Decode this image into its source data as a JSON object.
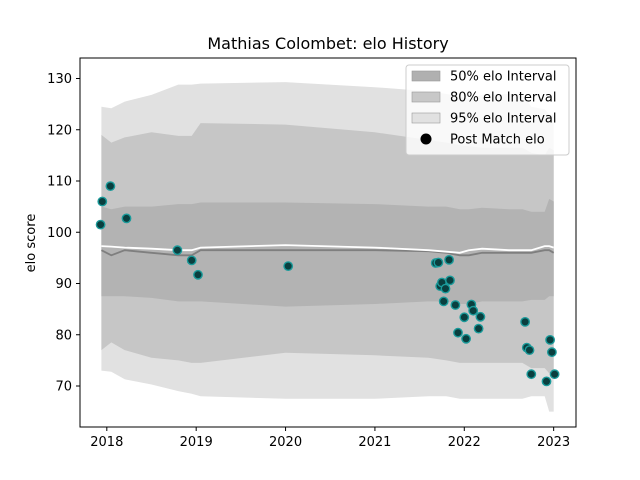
{
  "chart_data": {
    "type": "scatter",
    "title": "Mathias Colombet: elo History",
    "xlabel": "",
    "ylabel": "elo score",
    "xlim": [
      2017.7,
      2023.25
    ],
    "ylim": [
      62,
      134
    ],
    "x_ticks": [
      2018,
      2019,
      2020,
      2021,
      2022,
      2023
    ],
    "y_ticks": [
      70,
      80,
      90,
      100,
      110,
      120,
      130
    ],
    "grid": false,
    "legend_position": "top-right",
    "legend": [
      {
        "label": "50% elo Interval",
        "kind": "band",
        "color": "#b0b0b0"
      },
      {
        "label": "80% elo Interval",
        "kind": "band",
        "color": "#c8c8c8"
      },
      {
        "label": "95% elo Interval",
        "kind": "band",
        "color": "#e1e1e1"
      },
      {
        "label": "Post Match elo",
        "kind": "marker",
        "color": "#000000"
      }
    ],
    "colors": {
      "band95": "#e1e1e1",
      "band80": "#c6c6c6",
      "band50": "#b3b3b3",
      "median_line": "#7f7f7f",
      "mean_line": "#ffffff",
      "marker_fill": "#0a3f3f",
      "marker_edge": "#1a9a9a"
    },
    "bands": {
      "x": [
        2017.94,
        2018.05,
        2018.2,
        2018.5,
        2018.8,
        2018.95,
        2019.05,
        2020.0,
        2021.0,
        2021.6,
        2021.8,
        2021.95,
        2022.05,
        2022.2,
        2022.5,
        2022.65,
        2022.75,
        2022.9,
        2022.95,
        2023.0
      ],
      "upper95": [
        124.5,
        124.2,
        125.5,
        126.8,
        128.8,
        128.8,
        129.0,
        129.3,
        128.3,
        127.5,
        127.0,
        126.5,
        126.0,
        126.8,
        127.0,
        127.0,
        124.5,
        124.0,
        123.0,
        123.0
      ],
      "upper80": [
        119.0,
        117.5,
        118.5,
        119.5,
        118.8,
        118.8,
        121.3,
        121.0,
        119.5,
        118.0,
        117.5,
        117.0,
        116.8,
        116.5,
        116.5,
        116.5,
        115.5,
        115.0,
        116.5,
        116.0
      ],
      "upper50": [
        105.0,
        104.5,
        105.0,
        105.0,
        105.5,
        105.5,
        105.8,
        105.8,
        105.5,
        105.0,
        105.0,
        104.5,
        104.5,
        104.8,
        104.5,
        104.5,
        104.0,
        104.0,
        106.5,
        106.0
      ],
      "median": [
        96.5,
        95.5,
        96.5,
        96.0,
        95.5,
        95.5,
        96.5,
        96.5,
        96.5,
        96.3,
        96.0,
        95.5,
        95.5,
        96.0,
        96.0,
        96.0,
        96.0,
        96.5,
        96.5,
        96.0
      ],
      "mean": [
        97.3,
        97.2,
        97.0,
        96.8,
        96.5,
        96.5,
        97.0,
        97.5,
        97.0,
        96.5,
        96.2,
        96.0,
        96.5,
        96.8,
        96.5,
        96.5,
        96.5,
        97.3,
        97.3,
        97.0
      ],
      "lower50": [
        87.5,
        87.5,
        87.5,
        87.2,
        86.5,
        86.5,
        86.5,
        85.5,
        86.0,
        86.5,
        86.5,
        86.0,
        86.0,
        86.5,
        86.5,
        86.5,
        86.8,
        86.8,
        87.5,
        87.5
      ],
      "lower80": [
        77.0,
        78.5,
        77.0,
        75.5,
        75.0,
        74.5,
        74.5,
        76.5,
        76.0,
        75.5,
        75.0,
        74.5,
        74.5,
        74.5,
        74.5,
        74.5,
        73.5,
        73.5,
        72.5,
        72.5
      ],
      "lower95": [
        73.0,
        72.8,
        71.3,
        70.3,
        69.0,
        68.5,
        68.0,
        67.5,
        67.5,
        68.0,
        68.0,
        67.5,
        67.5,
        67.5,
        67.5,
        67.5,
        68.0,
        68.0,
        65.0,
        65.0
      ]
    },
    "points": [
      {
        "x": 2017.93,
        "y": 101.5
      },
      {
        "x": 2017.95,
        "y": 106.0
      },
      {
        "x": 2018.04,
        "y": 109.0
      },
      {
        "x": 2018.22,
        "y": 102.7
      },
      {
        "x": 2018.79,
        "y": 96.5
      },
      {
        "x": 2018.95,
        "y": 94.5
      },
      {
        "x": 2019.02,
        "y": 91.7
      },
      {
        "x": 2020.03,
        "y": 93.4
      },
      {
        "x": 2021.68,
        "y": 94.0
      },
      {
        "x": 2021.71,
        "y": 94.1
      },
      {
        "x": 2021.73,
        "y": 89.5
      },
      {
        "x": 2021.75,
        "y": 90.2
      },
      {
        "x": 2021.77,
        "y": 86.5
      },
      {
        "x": 2021.79,
        "y": 89.0
      },
      {
        "x": 2021.83,
        "y": 94.6
      },
      {
        "x": 2021.84,
        "y": 90.6
      },
      {
        "x": 2021.9,
        "y": 85.8
      },
      {
        "x": 2021.93,
        "y": 80.4
      },
      {
        "x": 2022.0,
        "y": 83.4
      },
      {
        "x": 2022.02,
        "y": 79.2
      },
      {
        "x": 2022.08,
        "y": 85.9
      },
      {
        "x": 2022.1,
        "y": 84.7
      },
      {
        "x": 2022.16,
        "y": 81.2
      },
      {
        "x": 2022.18,
        "y": 83.5
      },
      {
        "x": 2022.68,
        "y": 82.5
      },
      {
        "x": 2022.7,
        "y": 77.5
      },
      {
        "x": 2022.73,
        "y": 77.0
      },
      {
        "x": 2022.75,
        "y": 72.3
      },
      {
        "x": 2022.92,
        "y": 70.9
      },
      {
        "x": 2022.96,
        "y": 79.0
      },
      {
        "x": 2022.98,
        "y": 76.6
      },
      {
        "x": 2023.01,
        "y": 72.3
      }
    ]
  }
}
